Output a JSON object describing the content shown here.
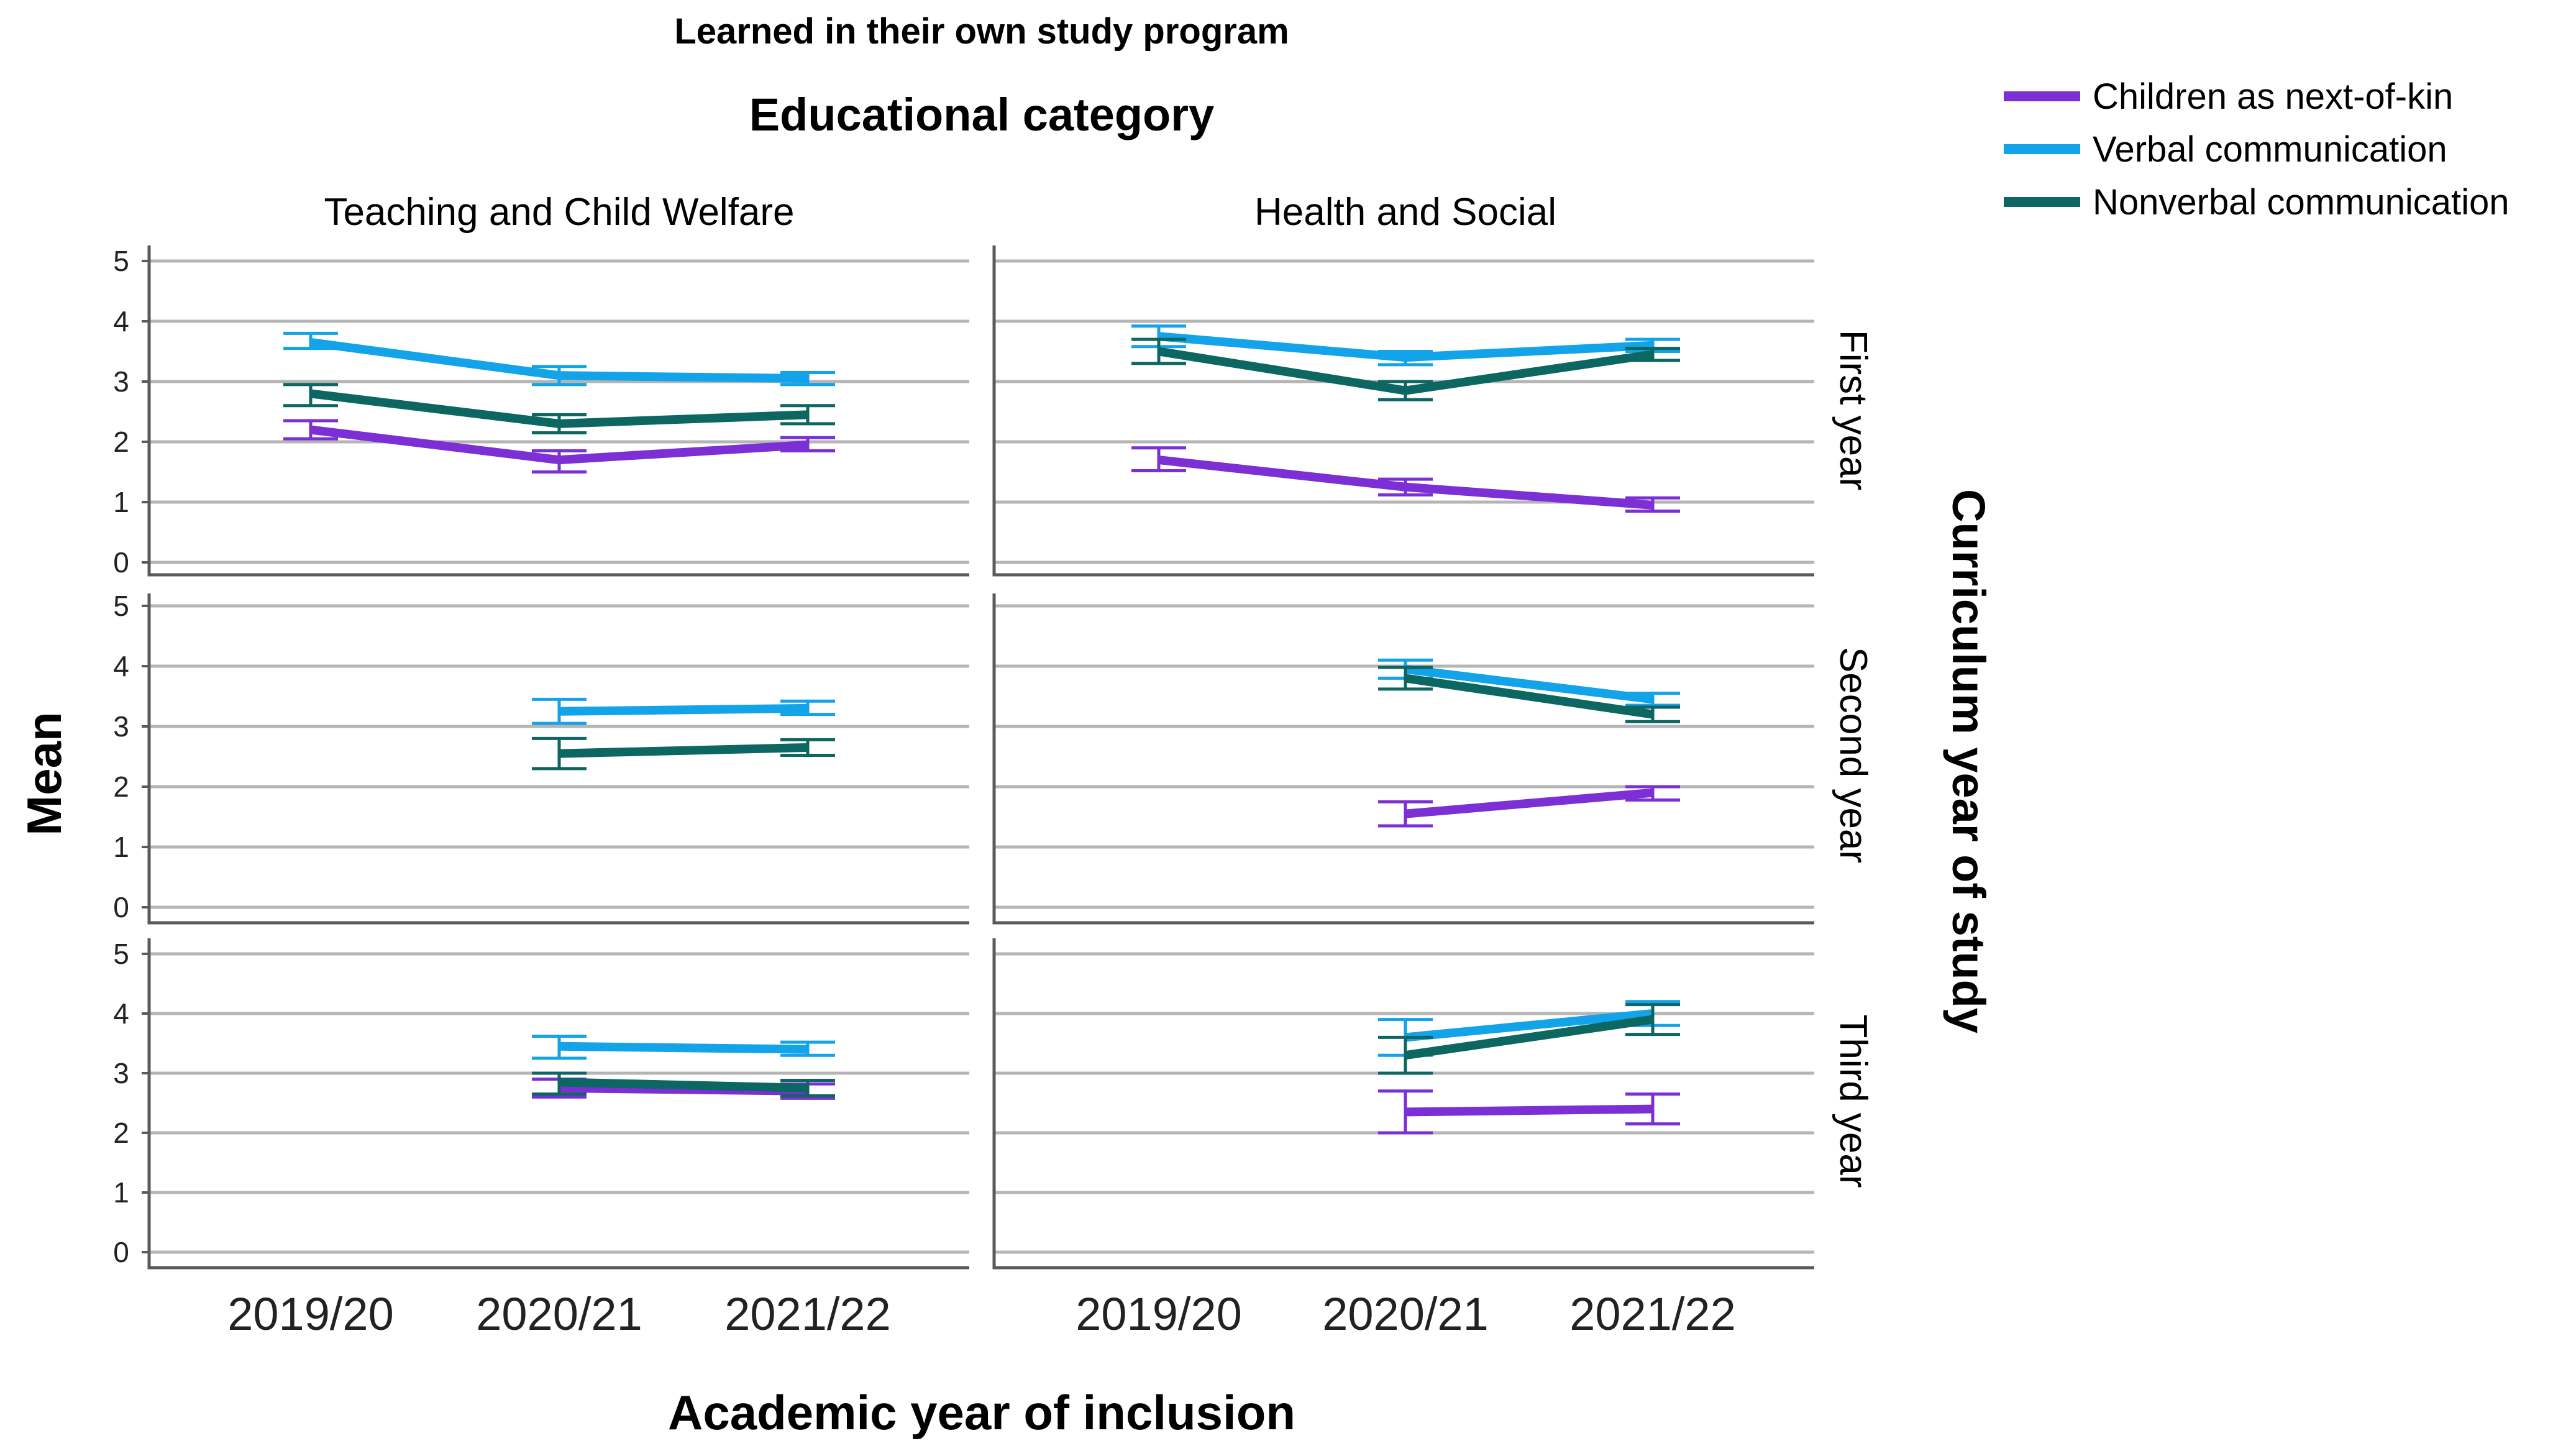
{
  "colors": {
    "children": "#7b2fd4",
    "verbal": "#12a3e8",
    "nonverbal": "#0c6661"
  },
  "chart_data": {
    "type": "line",
    "title": "Learned in their own study program",
    "facet_title": "Educational category",
    "ylabel": "Mean",
    "xlabel": "Academic year of inclusion",
    "row_title": "Curriculum year of study",
    "ylim": [
      0,
      5
    ],
    "yticks": [
      "0",
      "1",
      "2",
      "3",
      "4",
      "5"
    ],
    "categories": [
      "2019/20",
      "2020/21",
      "2021/22"
    ],
    "columns": [
      "Teaching and Child Welfare",
      "Health and Social"
    ],
    "rows": [
      "First year",
      "Second year",
      "Third year"
    ],
    "legend": [
      {
        "name": "Children as next-of-kin",
        "color": "#7b2fd4"
      },
      {
        "name": "Verbal communication",
        "color": "#12a3e8"
      },
      {
        "name": "Nonverbal communication",
        "color": "#0c6661"
      }
    ],
    "panels": [
      {
        "column": "Teaching and Child Welfare",
        "row": "First year",
        "series": [
          {
            "name": "Children as next-of-kin",
            "values": [
              2.2,
              1.7,
              1.95
            ],
            "lower": [
              2.05,
              1.5,
              1.85
            ],
            "upper": [
              2.35,
              1.85,
              2.07
            ]
          },
          {
            "name": "Verbal communication",
            "values": [
              3.65,
              3.1,
              3.05
            ],
            "lower": [
              3.55,
              2.95,
              2.95
            ],
            "upper": [
              3.8,
              3.25,
              3.15
            ]
          },
          {
            "name": "Nonverbal communication",
            "values": [
              2.8,
              2.3,
              2.45
            ],
            "lower": [
              2.6,
              2.15,
              2.3
            ],
            "upper": [
              2.95,
              2.45,
              2.6
            ]
          }
        ]
      },
      {
        "column": "Health and Social",
        "row": "First year",
        "series": [
          {
            "name": "Children as next-of-kin",
            "values": [
              1.7,
              1.25,
              0.95
            ],
            "lower": [
              1.52,
              1.12,
              0.85
            ],
            "upper": [
              1.9,
              1.38,
              1.07
            ]
          },
          {
            "name": "Verbal communication",
            "values": [
              3.75,
              3.4,
              3.6
            ],
            "lower": [
              3.58,
              3.28,
              3.5
            ],
            "upper": [
              3.92,
              3.5,
              3.7
            ]
          },
          {
            "name": "Nonverbal communication",
            "values": [
              3.5,
              2.85,
              3.45
            ],
            "lower": [
              3.3,
              2.7,
              3.35
            ],
            "upper": [
              3.7,
              3.0,
              3.55
            ]
          }
        ]
      },
      {
        "column": "Teaching and Child Welfare",
        "row": "Second year",
        "series": [
          {
            "name": "Children as next-of-kin",
            "values": [
              null,
              null,
              null
            ],
            "lower": [
              null,
              null,
              null
            ],
            "upper": [
              null,
              null,
              null
            ]
          },
          {
            "name": "Verbal communication",
            "values": [
              null,
              3.25,
              3.3
            ],
            "lower": [
              null,
              3.05,
              3.2
            ],
            "upper": [
              null,
              3.45,
              3.42
            ]
          },
          {
            "name": "Nonverbal communication",
            "values": [
              null,
              2.55,
              2.65
            ],
            "lower": [
              null,
              2.3,
              2.52
            ],
            "upper": [
              null,
              2.8,
              2.78
            ]
          }
        ]
      },
      {
        "column": "Health and Social",
        "row": "Second year",
        "series": [
          {
            "name": "Children as next-of-kin",
            "values": [
              null,
              1.55,
              1.9
            ],
            "lower": [
              null,
              1.35,
              1.78
            ],
            "upper": [
              null,
              1.75,
              2.0
            ]
          },
          {
            "name": "Verbal communication",
            "values": [
              null,
              3.95,
              3.45
            ],
            "lower": [
              null,
              3.8,
              3.35
            ],
            "upper": [
              null,
              4.1,
              3.55
            ]
          },
          {
            "name": "Nonverbal communication",
            "values": [
              null,
              3.8,
              3.2
            ],
            "lower": [
              null,
              3.62,
              3.08
            ],
            "upper": [
              null,
              3.98,
              3.32
            ]
          }
        ]
      },
      {
        "column": "Teaching and Child Welfare",
        "row": "Third year",
        "series": [
          {
            "name": "Children as next-of-kin",
            "values": [
              null,
              2.75,
              2.7
            ],
            "lower": [
              null,
              2.6,
              2.58
            ],
            "upper": [
              null,
              2.9,
              2.82
            ]
          },
          {
            "name": "Verbal communication",
            "values": [
              null,
              3.45,
              3.4
            ],
            "lower": [
              null,
              3.25,
              3.3
            ],
            "upper": [
              null,
              3.62,
              3.52
            ]
          },
          {
            "name": "Nonverbal communication",
            "values": [
              null,
              2.85,
              2.75
            ],
            "lower": [
              null,
              2.65,
              2.62
            ],
            "upper": [
              null,
              3.0,
              2.88
            ]
          }
        ]
      },
      {
        "column": "Health and Social",
        "row": "Third year",
        "series": [
          {
            "name": "Children as next-of-kin",
            "values": [
              null,
              2.35,
              2.4
            ],
            "lower": [
              null,
              2.0,
              2.15
            ],
            "upper": [
              null,
              2.7,
              2.65
            ]
          },
          {
            "name": "Verbal communication",
            "values": [
              null,
              3.6,
              4.0
            ],
            "lower": [
              null,
              3.3,
              3.8
            ],
            "upper": [
              null,
              3.9,
              4.2
            ]
          },
          {
            "name": "Nonverbal communication",
            "values": [
              null,
              3.3,
              3.9
            ],
            "lower": [
              null,
              3.0,
              3.65
            ],
            "upper": [
              null,
              3.6,
              4.15
            ]
          }
        ]
      }
    ]
  }
}
